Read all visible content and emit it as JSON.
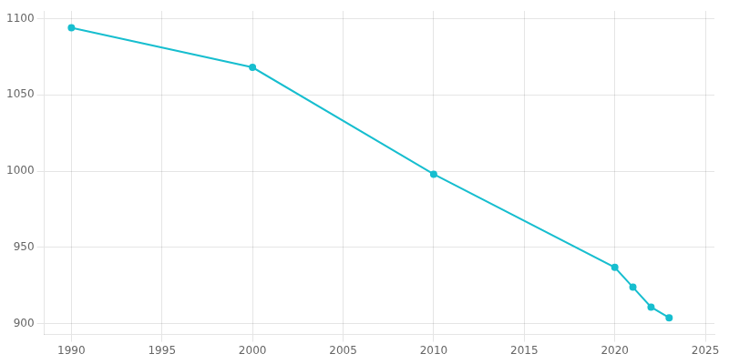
{
  "chart_data": {
    "type": "line",
    "x": [
      1990,
      2000,
      2010,
      2020,
      2021,
      2022,
      2023
    ],
    "values": [
      1094,
      1068,
      998,
      937,
      924,
      911,
      904
    ],
    "color": "#17BECF",
    "marker": "circle",
    "xlim": [
      1988.5,
      2025.5
    ],
    "ylim": [
      893,
      1105
    ],
    "xticks": [
      1990,
      1995,
      2000,
      2005,
      2010,
      2015,
      2020,
      2025
    ],
    "yticks": [
      900,
      950,
      1000,
      1050,
      1100
    ],
    "grid": true
  }
}
